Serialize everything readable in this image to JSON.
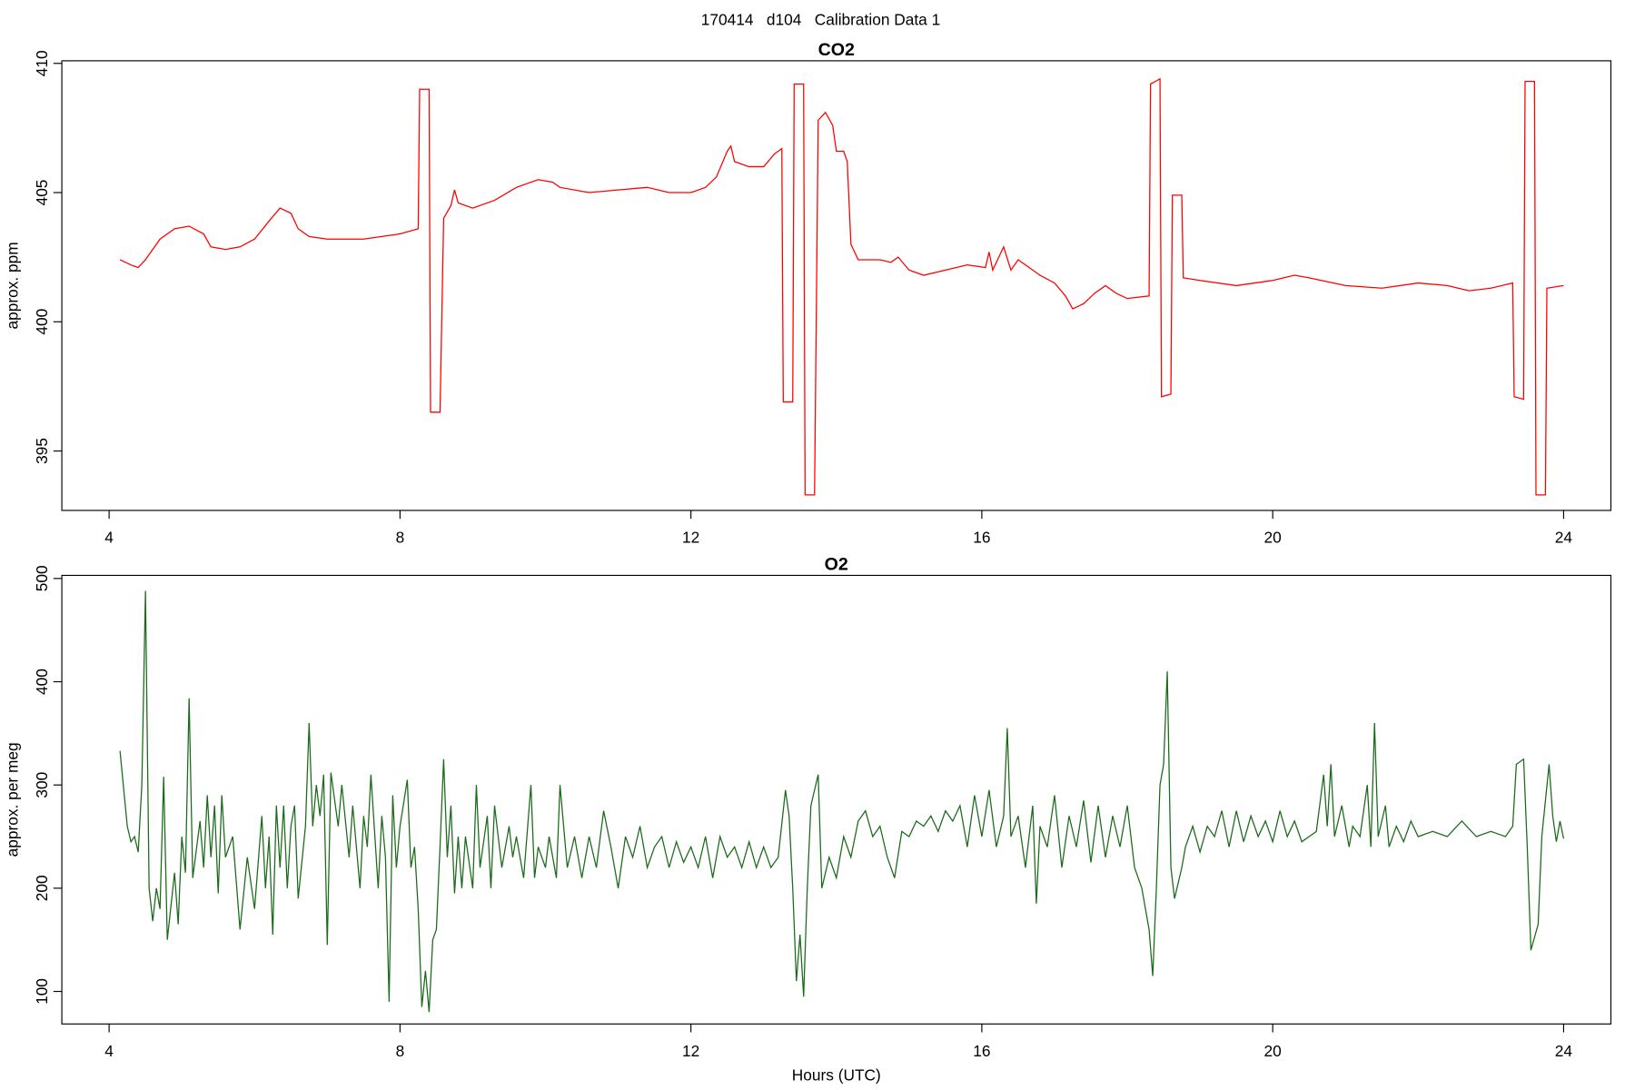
{
  "title": "170414   d104   Calibration Data 1",
  "chart_data": [
    {
      "type": "line",
      "title": "CO2",
      "ylabel": "approx. ppm",
      "color": "#ff0000",
      "xlim": [
        3.35,
        24.65
      ],
      "xticks": [
        4,
        8,
        12,
        16,
        20,
        24
      ],
      "ylim": [
        392.7,
        410.1
      ],
      "yticks": [
        395,
        400,
        405,
        410
      ],
      "x": [
        4.15,
        4.3,
        4.4,
        4.5,
        4.7,
        4.9,
        5.1,
        5.3,
        5.4,
        5.6,
        5.8,
        6.0,
        6.2,
        6.35,
        6.5,
        6.6,
        6.75,
        7.0,
        7.5,
        8.0,
        8.25,
        8.27,
        8.4,
        8.42,
        8.55,
        8.6,
        8.7,
        8.75,
        8.8,
        9.0,
        9.3,
        9.6,
        9.9,
        10.1,
        10.2,
        10.6,
        11.0,
        11.4,
        11.7,
        12.0,
        12.2,
        12.35,
        12.5,
        12.55,
        12.6,
        12.8,
        13.0,
        13.15,
        13.25,
        13.27,
        13.4,
        13.42,
        13.55,
        13.57,
        13.7,
        13.75,
        13.85,
        13.95,
        14.0,
        14.1,
        14.15,
        14.2,
        14.3,
        14.6,
        14.75,
        14.85,
        15.0,
        15.2,
        15.5,
        15.8,
        16.05,
        16.1,
        16.15,
        16.3,
        16.4,
        16.5,
        16.6,
        16.8,
        17.0,
        17.15,
        17.25,
        17.4,
        17.55,
        17.7,
        17.85,
        18.0,
        18.3,
        18.32,
        18.45,
        18.47,
        18.6,
        18.62,
        18.75,
        18.77,
        19.0,
        19.5,
        20.0,
        20.3,
        20.5,
        21.0,
        21.5,
        22.0,
        22.4,
        22.7,
        23.0,
        23.3,
        23.32,
        23.45,
        23.47,
        23.6,
        23.62,
        23.75,
        23.77,
        24.0
      ],
      "values": [
        402.4,
        402.2,
        402.1,
        402.4,
        403.2,
        403.6,
        403.7,
        403.4,
        402.9,
        402.8,
        402.9,
        403.2,
        403.9,
        404.4,
        404.2,
        403.6,
        403.3,
        403.2,
        403.2,
        403.4,
        403.6,
        409.0,
        409.0,
        396.5,
        396.5,
        404.0,
        404.5,
        405.1,
        404.6,
        404.4,
        404.7,
        405.2,
        405.5,
        405.4,
        405.2,
        405.0,
        405.1,
        405.2,
        405.0,
        405.0,
        405.2,
        405.6,
        406.6,
        406.8,
        406.2,
        406.0,
        406.0,
        406.5,
        406.7,
        396.9,
        396.9,
        409.2,
        409.2,
        393.3,
        393.3,
        407.8,
        408.1,
        407.6,
        406.6,
        406.6,
        406.2,
        403.0,
        402.4,
        402.4,
        402.3,
        402.5,
        402.0,
        401.8,
        402.0,
        402.2,
        402.1,
        402.7,
        402.0,
        402.9,
        402.0,
        402.4,
        402.2,
        401.8,
        401.5,
        401.0,
        400.5,
        400.7,
        401.1,
        401.4,
        401.1,
        400.9,
        401.0,
        409.2,
        409.4,
        397.1,
        397.2,
        404.9,
        404.9,
        401.7,
        401.6,
        401.4,
        401.6,
        401.8,
        401.7,
        401.4,
        401.3,
        401.5,
        401.4,
        401.2,
        401.3,
        401.5,
        397.1,
        397.0,
        409.3,
        409.3,
        393.3,
        393.3,
        401.3,
        401.4
      ]
    },
    {
      "type": "line",
      "title": "O2",
      "ylabel": "approx. per meg",
      "xlabel": "Hours (UTC)",
      "color": "#1a6b1a",
      "xlim": [
        3.35,
        24.65
      ],
      "xticks": [
        4,
        8,
        12,
        16,
        20,
        24
      ],
      "ylim": [
        68.5,
        503
      ],
      "yticks": [
        100,
        200,
        300,
        400,
        500
      ],
      "x": [
        4.15,
        4.25,
        4.3,
        4.35,
        4.4,
        4.45,
        4.5,
        4.55,
        4.6,
        4.65,
        4.7,
        4.75,
        4.8,
        4.9,
        4.95,
        5.0,
        5.05,
        5.1,
        5.15,
        5.25,
        5.3,
        5.35,
        5.4,
        5.45,
        5.5,
        5.55,
        5.6,
        5.7,
        5.8,
        5.9,
        6.0,
        6.1,
        6.15,
        6.2,
        6.25,
        6.3,
        6.35,
        6.4,
        6.45,
        6.5,
        6.55,
        6.6,
        6.7,
        6.75,
        6.8,
        6.85,
        6.9,
        6.95,
        7.0,
        7.05,
        7.15,
        7.2,
        7.3,
        7.35,
        7.45,
        7.5,
        7.55,
        7.6,
        7.7,
        7.75,
        7.8,
        7.85,
        7.9,
        7.95,
        8.0,
        8.1,
        8.15,
        8.2,
        8.25,
        8.3,
        8.35,
        8.4,
        8.45,
        8.5,
        8.55,
        8.6,
        8.65,
        8.7,
        8.75,
        8.8,
        8.85,
        8.9,
        9.0,
        9.05,
        9.1,
        9.2,
        9.25,
        9.3,
        9.4,
        9.5,
        9.55,
        9.6,
        9.7,
        9.8,
        9.85,
        9.9,
        10.0,
        10.05,
        10.15,
        10.2,
        10.3,
        10.4,
        10.5,
        10.6,
        10.7,
        10.8,
        10.9,
        11.0,
        11.1,
        11.2,
        11.3,
        11.4,
        11.5,
        11.6,
        11.7,
        11.8,
        11.9,
        12.0,
        12.1,
        12.2,
        12.3,
        12.4,
        12.5,
        12.6,
        12.7,
        12.8,
        12.9,
        13.0,
        13.1,
        13.2,
        13.3,
        13.35,
        13.4,
        13.45,
        13.5,
        13.55,
        13.6,
        13.65,
        13.75,
        13.8,
        13.9,
        14.0,
        14.1,
        14.2,
        14.3,
        14.4,
        14.5,
        14.6,
        14.7,
        14.8,
        14.9,
        15.0,
        15.1,
        15.2,
        15.3,
        15.4,
        15.5,
        15.6,
        15.7,
        15.8,
        15.9,
        16.0,
        16.1,
        16.2,
        16.3,
        16.35,
        16.4,
        16.5,
        16.6,
        16.7,
        16.75,
        16.8,
        16.9,
        17.0,
        17.1,
        17.2,
        17.3,
        17.4,
        17.5,
        17.6,
        17.7,
        17.8,
        17.9,
        18.0,
        18.1,
        18.2,
        18.3,
        18.35,
        18.4,
        18.45,
        18.5,
        18.55,
        18.6,
        18.65,
        18.75,
        18.8,
        18.9,
        19.0,
        19.1,
        19.2,
        19.3,
        19.4,
        19.5,
        19.6,
        19.7,
        19.8,
        19.9,
        20.0,
        20.1,
        20.2,
        20.3,
        20.4,
        20.5,
        20.6,
        20.7,
        20.75,
        20.8,
        20.85,
        20.95,
        21.05,
        21.1,
        21.2,
        21.3,
        21.35,
        21.4,
        21.45,
        21.55,
        21.6,
        21.7,
        21.8,
        21.9,
        22.0,
        22.2,
        22.4,
        22.6,
        22.8,
        23.0,
        23.2,
        23.3,
        23.35,
        23.45,
        23.5,
        23.55,
        23.65,
        23.7,
        23.8,
        23.85,
        23.9,
        23.95,
        24.0
      ],
      "values": [
        333,
        260,
        245,
        250,
        235,
        300,
        488,
        200,
        168,
        200,
        180,
        308,
        150,
        215,
        165,
        250,
        215,
        384,
        210,
        265,
        220,
        290,
        230,
        280,
        195,
        290,
        230,
        250,
        160,
        230,
        180,
        270,
        200,
        250,
        155,
        280,
        220,
        280,
        200,
        260,
        280,
        190,
        260,
        360,
        260,
        300,
        270,
        310,
        145,
        312,
        260,
        300,
        230,
        280,
        200,
        270,
        240,
        310,
        200,
        270,
        230,
        90,
        290,
        220,
        260,
        305,
        220,
        240,
        180,
        85,
        120,
        80,
        150,
        160,
        240,
        325,
        230,
        280,
        195,
        250,
        200,
        250,
        200,
        300,
        220,
        270,
        200,
        280,
        220,
        260,
        230,
        250,
        210,
        300,
        210,
        240,
        220,
        250,
        210,
        300,
        220,
        250,
        210,
        250,
        220,
        275,
        240,
        200,
        250,
        230,
        260,
        220,
        240,
        250,
        220,
        245,
        225,
        240,
        220,
        250,
        210,
        250,
        230,
        240,
        220,
        245,
        220,
        240,
        220,
        230,
        295,
        270,
        200,
        110,
        155,
        95,
        200,
        280,
        310,
        200,
        230,
        210,
        250,
        230,
        265,
        275,
        250,
        260,
        230,
        210,
        255,
        250,
        265,
        260,
        270,
        255,
        275,
        265,
        280,
        240,
        290,
        250,
        295,
        240,
        270,
        355,
        250,
        270,
        220,
        280,
        185,
        260,
        240,
        290,
        220,
        270,
        240,
        285,
        225,
        280,
        230,
        270,
        240,
        280,
        220,
        200,
        160,
        115,
        200,
        300,
        320,
        410,
        220,
        190,
        220,
        240,
        260,
        235,
        260,
        250,
        275,
        240,
        275,
        245,
        270,
        250,
        265,
        245,
        275,
        250,
        265,
        245,
        250,
        255,
        310,
        260,
        320,
        250,
        280,
        240,
        260,
        250,
        300,
        240,
        360,
        250,
        280,
        240,
        260,
        245,
        265,
        250,
        255,
        250,
        265,
        250,
        255,
        250,
        260,
        320,
        325,
        240,
        140,
        165,
        250,
        320,
        270,
        245,
        265,
        248
      ]
    }
  ]
}
